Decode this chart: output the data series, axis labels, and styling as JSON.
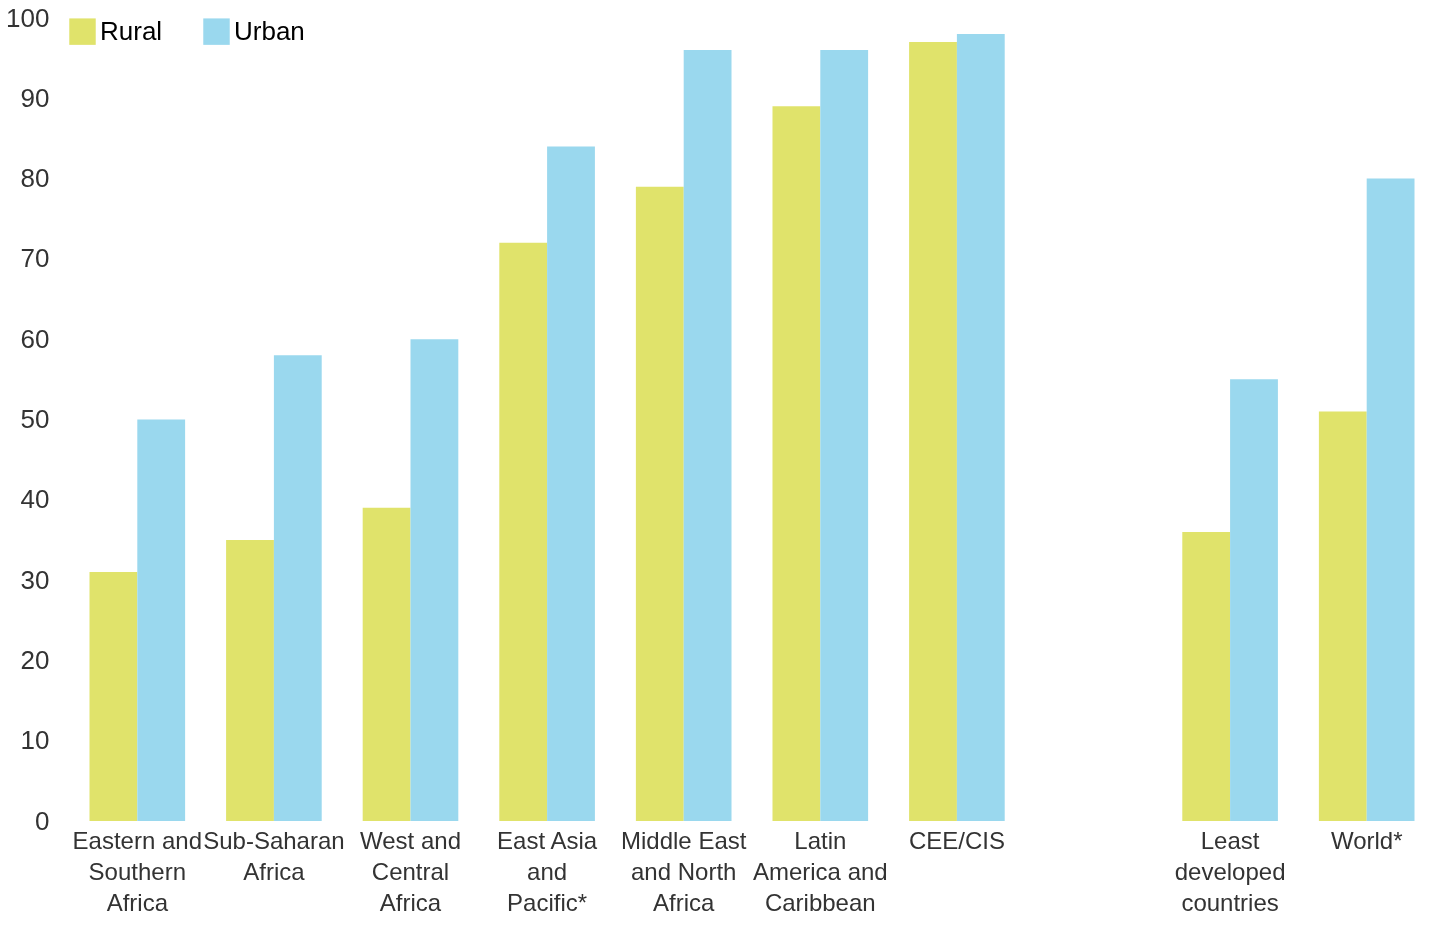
{
  "chart_data": {
    "type": "bar",
    "categories": [
      "Eastern and Southern Africa",
      "Sub-Saharan Africa",
      "West and Central Africa",
      "East Asia and Pacific*",
      "Middle East and North Africa",
      "Latin America and Caribbean",
      "CEE/CIS",
      null,
      "Least developed countries",
      "World*"
    ],
    "series": [
      {
        "name": "Rural",
        "color": "#e0e36b",
        "values": [
          31,
          35,
          39,
          72,
          79,
          89,
          97,
          null,
          36,
          51
        ]
      },
      {
        "name": "Urban",
        "color": "#9ad8ee",
        "values": [
          50,
          58,
          60,
          84,
          96,
          96,
          98,
          null,
          55,
          80
        ]
      }
    ],
    "ylim": [
      0,
      100
    ],
    "yticks": [
      0,
      10,
      20,
      30,
      40,
      50,
      60,
      70,
      80,
      90,
      100
    ],
    "grid": false,
    "legend": "top left"
  }
}
